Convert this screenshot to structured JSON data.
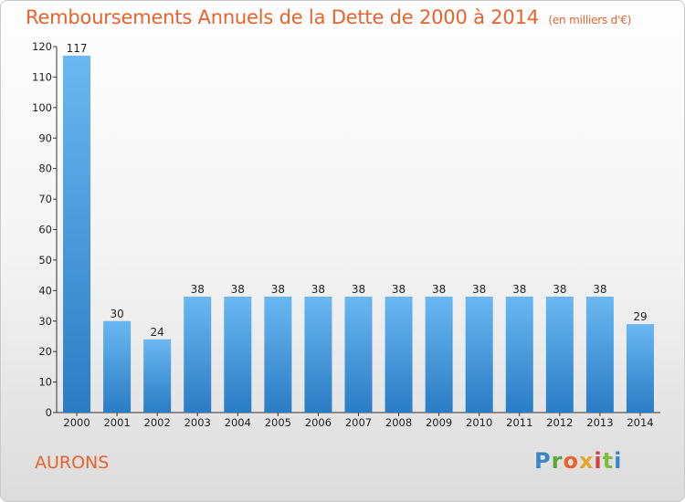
{
  "header": {
    "title": "Remboursements Annuels de la Dette de 2000 à 2014",
    "subtitle": "(en milliers d'€)"
  },
  "commune": "AURONS",
  "logo": {
    "letters": [
      "P",
      "r",
      "o",
      "x",
      "i",
      "t",
      "i"
    ]
  },
  "colors": {
    "title": "#e8632c",
    "bar_light": "#6ab8f2",
    "bar_dark": "#2a7cc4"
  },
  "chart_data": {
    "type": "bar",
    "title": "Remboursements Annuels de la Dette de 2000 à 2014",
    "subtitle": "(en milliers d'€)",
    "xlabel": "",
    "ylabel": "",
    "categories": [
      "2000",
      "2001",
      "2002",
      "2003",
      "2004",
      "2005",
      "2006",
      "2007",
      "2008",
      "2009",
      "2010",
      "2011",
      "2012",
      "2013",
      "2014"
    ],
    "values": [
      117,
      30,
      24,
      38,
      38,
      38,
      38,
      38,
      38,
      38,
      38,
      38,
      38,
      38,
      29
    ],
    "ylim": [
      0,
      120
    ],
    "yticks": [
      0,
      10,
      20,
      30,
      40,
      50,
      60,
      70,
      80,
      90,
      100,
      110,
      120
    ],
    "grid": false,
    "legend": "none"
  }
}
